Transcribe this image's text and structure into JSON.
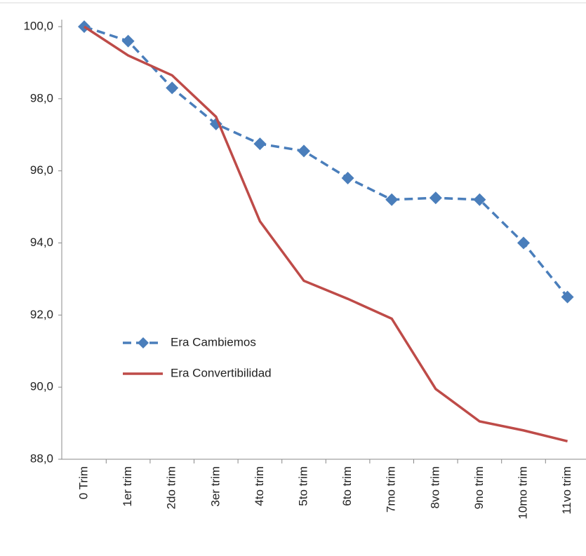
{
  "chart_data": {
    "type": "line",
    "categories": [
      "0 Trim",
      "1er trim",
      "2do trim",
      "3er trim",
      "4to trim",
      "5to trim",
      "6to trim",
      "7mo trim",
      "8vo trim",
      "9no trim",
      "10mo trim",
      "11vo trim"
    ],
    "series": [
      {
        "name": "Era Cambiemos",
        "color": "#4a7ebb",
        "dashed": true,
        "marker": "diamond",
        "values": [
          100,
          99.6,
          98.3,
          97.3,
          96.75,
          96.55,
          95.8,
          95.2,
          95.25,
          95.2,
          94.0,
          92.5
        ]
      },
      {
        "name": "Era Convertibilidad",
        "color": "#be4b48",
        "dashed": false,
        "marker": "none",
        "values": [
          100,
          99.2,
          98.65,
          97.5,
          94.6,
          92.95,
          92.45,
          91.9,
          89.95,
          89.05,
          88.8,
          88.5
        ]
      }
    ],
    "ylim": [
      88,
      100
    ],
    "yticks": [
      {
        "value": 88,
        "label": "88,0"
      },
      {
        "value": 90,
        "label": "90,0"
      },
      {
        "value": 92,
        "label": "92,0"
      },
      {
        "value": 94,
        "label": "94,0"
      },
      {
        "value": 96,
        "label": "96,0"
      },
      {
        "value": 98,
        "label": "98,0"
      },
      {
        "value": 100,
        "label": "100,0"
      }
    ],
    "grid": false
  }
}
